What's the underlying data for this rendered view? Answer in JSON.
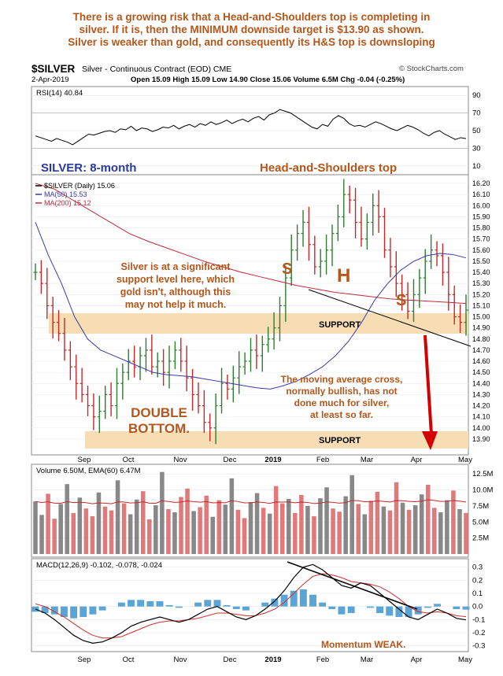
{
  "header": {
    "headline": "There is a growing risk that a Head-and-Shoulders top is completing in\nsilver.  If it is, then the MINIMUM downside target is $13.90 as shown.\nSilver is weaker than gold, and consequently its H&S top is downsloping",
    "symbol": "$SILVER",
    "subtitle": "Silver - Continuous Contract (EOD) CME",
    "date": "2-Apr-2019",
    "ohlc": "Open 15.09  High 15.09  Low 14.90  Close 15.06  Volume 6.5M  Chg -0.04 (-0.25%)",
    "credit": "© StockCharts.com"
  },
  "colors": {
    "annotation": "#b5561a",
    "title_blue": "#2b3a9e",
    "ma50": "#3a3aa8",
    "ma200": "#c0283c",
    "support_band": "#f6ddb4",
    "arrow": "#d40000",
    "up": "#2e7d32",
    "down": "#c62828"
  },
  "chart_data": [
    {
      "type": "line",
      "title": "RSI(14) 40.84",
      "y_ticks": [
        10,
        30,
        50,
        70,
        90
      ],
      "ylim": [
        0,
        100
      ],
      "reference_lines": [
        30,
        70
      ],
      "values": [
        44,
        42,
        40,
        38,
        41,
        39,
        37,
        34,
        38,
        42,
        46,
        45,
        47,
        49,
        50,
        48,
        52,
        51,
        55,
        50,
        53,
        52,
        49,
        51,
        54,
        53,
        56,
        52,
        55,
        57,
        54,
        58,
        56,
        60,
        57,
        59,
        62,
        58,
        61,
        63,
        60,
        64,
        66,
        62,
        68,
        70,
        74,
        72,
        70,
        66,
        62,
        58,
        54,
        52,
        57,
        55,
        63,
        67,
        64,
        58,
        55,
        56,
        54,
        57,
        60,
        58,
        55,
        52,
        50,
        53,
        56,
        54,
        51,
        47,
        44,
        48,
        50,
        46,
        43,
        40,
        42,
        41
      ]
    },
    {
      "type": "line",
      "title": "SILVER: 8-month",
      "legend": [
        "$SILVER (Daily) 15.06",
        "MA(50) 15.53",
        "MA(200) 15.12"
      ],
      "ylim": [
        13.8,
        16.25
      ],
      "y_ticks": [
        "16.20",
        "16.10",
        "16.00",
        "15.90",
        "15.80",
        "15.70",
        "15.60",
        "15.50",
        "15.40",
        "15.30",
        "15.20",
        "15.10",
        "15.00",
        "14.90",
        "14.80",
        "14.70",
        "14.60",
        "14.50",
        "14.40",
        "14.30",
        "14.20",
        "14.10",
        "14.00",
        "13.90"
      ],
      "x_ticks": [
        "Sep",
        "Oct",
        "Nov",
        "Dec",
        "2019",
        "Feb",
        "Mar",
        "Apr",
        "May"
      ],
      "series": [
        {
          "name": "$SILVER (Daily) 15.06",
          "values": [
            15.4,
            15.3,
            15.1,
            14.95,
            14.85,
            14.7,
            14.55,
            14.4,
            14.3,
            14.2,
            14.1,
            14.15,
            14.3,
            14.2,
            14.4,
            14.5,
            14.6,
            14.55,
            14.65,
            14.7,
            14.55,
            14.6,
            14.5,
            14.6,
            14.7,
            14.6,
            14.45,
            14.3,
            14.2,
            14.05,
            14.0,
            14.2,
            14.4,
            14.35,
            14.45,
            14.55,
            14.6,
            14.7,
            14.65,
            14.75,
            14.8,
            14.9,
            15.1,
            15.35,
            15.6,
            15.75,
            15.85,
            15.65,
            15.45,
            15.5,
            15.6,
            15.75,
            15.9,
            16.1,
            16.05,
            15.85,
            15.7,
            15.85,
            16.0,
            15.9,
            15.6,
            15.45,
            15.3,
            15.2,
            15.05,
            15.2,
            15.35,
            15.5,
            15.6,
            15.55,
            15.4,
            15.2,
            15.0,
            14.95,
            15.06
          ]
        },
        {
          "name": "MA(50) 15.53",
          "values": [
            15.85,
            15.55,
            15.3,
            15.0,
            14.8,
            14.7,
            14.65,
            14.6,
            14.55,
            14.5,
            14.48,
            14.47,
            14.46,
            14.44,
            14.42,
            14.4,
            14.38,
            14.36,
            14.35,
            14.38,
            14.42,
            14.48,
            14.55,
            14.65,
            14.78,
            14.95,
            15.15,
            15.3,
            15.42,
            15.5,
            15.55,
            15.57,
            15.56,
            15.53
          ]
        },
        {
          "name": "MA(200) 15.12",
          "values": [
            16.2,
            16.15,
            16.05,
            15.95,
            15.85,
            15.75,
            15.68,
            15.62,
            15.56,
            15.5,
            15.45,
            15.4,
            15.36,
            15.32,
            15.28,
            15.25,
            15.22,
            15.2,
            15.18,
            15.16,
            15.15,
            15.14,
            15.13,
            15.12
          ]
        }
      ]
    },
    {
      "type": "bar",
      "title": "Volume 6.50M, EMA(60) 6.47M",
      "y_ticks": [
        "12.5M",
        "10.0M",
        "7.5M",
        "5.0M",
        "2.5M"
      ],
      "ylim": [
        0,
        13.5
      ],
      "values": [
        8.2,
        6.1,
        9.4,
        5.5,
        7.8,
        10.9,
        6.4,
        8.8,
        7.1,
        5.9,
        9.6,
        7.4,
        6.8,
        11.5,
        7.9,
        6.2,
        8.5,
        9.8,
        5.4,
        7.6,
        12.8,
        7.0,
        6.5,
        8.9,
        10.2,
        6.7,
        7.3,
        9.1,
        5.8,
        8.4,
        7.7,
        11.8,
        6.9,
        5.6,
        8.1,
        9.5,
        7.2,
        6.3,
        10.6,
        7.9,
        8.6,
        6.4,
        9.2,
        7.5,
        5.9,
        8.7,
        10.4,
        7.1,
        6.6,
        9.0,
        12.3,
        7.8,
        6.2,
        8.3,
        9.7,
        7.4,
        6.8,
        11.2,
        8.0,
        6.9,
        7.6,
        9.3,
        10.8,
        7.2,
        6.5,
        8.4,
        9.9,
        7.0,
        6.4
      ]
    },
    {
      "type": "line",
      "title": "MACD(12,26,9) -0.102, -0.078, -0.024",
      "ylim": [
        -0.32,
        0.34
      ],
      "y_ticks": [
        "0.3",
        "0.2",
        "0.1",
        "0.0",
        "-0.1",
        "-0.2",
        "-0.3"
      ],
      "series": [
        {
          "name": "MACD(12,26,9) -0.102",
          "values": [
            -0.02,
            -0.05,
            -0.1,
            -0.16,
            -0.22,
            -0.26,
            -0.28,
            -0.27,
            -0.24,
            -0.2,
            -0.15,
            -0.12,
            -0.1,
            -0.08,
            -0.1,
            -0.12,
            -0.1,
            -0.06,
            -0.02,
            0.0,
            -0.04,
            -0.08,
            -0.1,
            -0.07,
            -0.02,
            0.04,
            0.12,
            0.22,
            0.3,
            0.32,
            0.28,
            0.22,
            0.16,
            0.14,
            0.18,
            0.16,
            0.1,
            0.04,
            -0.02,
            -0.08,
            -0.1,
            -0.06,
            -0.02,
            -0.05,
            -0.09,
            -0.102
          ]
        },
        {
          "name": "-0.078",
          "values": [
            0.02,
            0.0,
            -0.04,
            -0.08,
            -0.13,
            -0.18,
            -0.22,
            -0.24,
            -0.24,
            -0.23,
            -0.2,
            -0.17,
            -0.14,
            -0.12,
            -0.11,
            -0.11,
            -0.1,
            -0.09,
            -0.07,
            -0.05,
            -0.05,
            -0.06,
            -0.07,
            -0.07,
            -0.05,
            -0.02,
            0.03,
            0.1,
            0.17,
            0.23,
            0.25,
            0.24,
            0.22,
            0.19,
            0.18,
            0.17,
            0.15,
            0.11,
            0.06,
            0.0,
            -0.04,
            -0.05,
            -0.04,
            -0.05,
            -0.07,
            -0.078
          ]
        }
      ],
      "x_ticks": [
        "Sep",
        "Oct",
        "Nov",
        "Dec",
        "2019",
        "Feb",
        "Mar",
        "Apr",
        "May"
      ]
    }
  ],
  "annotations": {
    "main_title": "SILVER: 8-month",
    "hs_title": "Head-and-Shoulders top",
    "support_note": "Silver is at a significant\nsupport level here, which\ngold isn't, although this\nmay not help it much.",
    "ma_note": "The moving average cross,\nnormally bullish, has not\ndone much for silver,\nat least so far.",
    "double_bottom": "DOUBLE\nBOTTOM.",
    "support_label": "SUPPORT",
    "s_left": "S",
    "h": "H",
    "s_right": "S",
    "momentum": "Momentum WEAK."
  }
}
